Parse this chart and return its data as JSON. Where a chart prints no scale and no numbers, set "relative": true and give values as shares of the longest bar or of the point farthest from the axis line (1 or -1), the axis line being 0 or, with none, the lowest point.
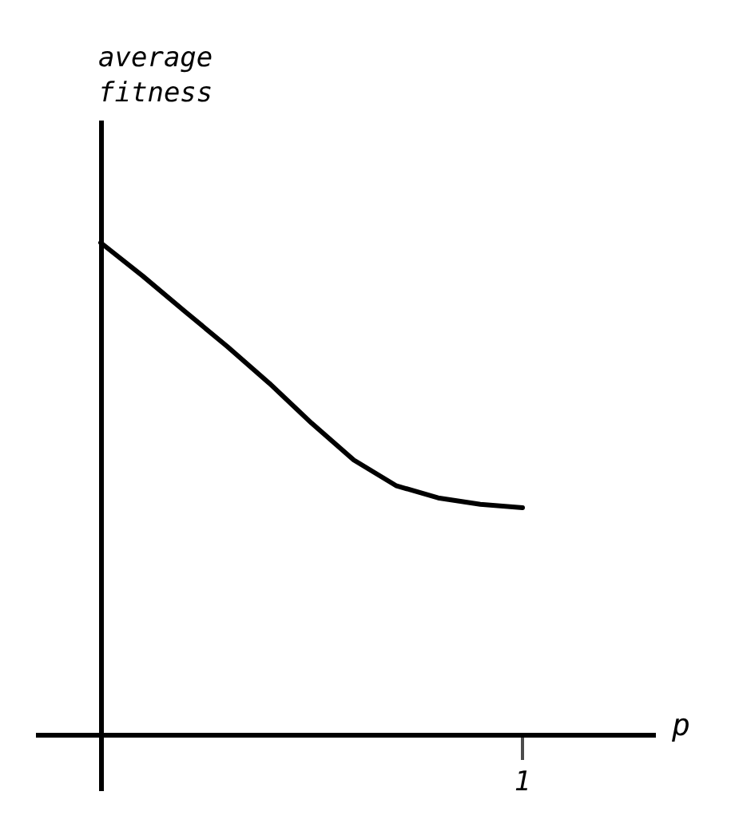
{
  "chart_data": {
    "type": "line",
    "relative": true,
    "xlabel": "p",
    "ylabel": "average\nfitness",
    "annotations": [
      "1"
    ],
    "categories": [
      null,
      null,
      null,
      null,
      null,
      null,
      null,
      null,
      null,
      null,
      null
    ],
    "series": [
      {
        "color": "#000000",
        "values": [
          1,
          0.932,
          0.86,
          0.789,
          0.714,
          0.633,
          0.558,
          0.506,
          0.481,
          0.468,
          0.461
        ]
      }
    ]
  }
}
